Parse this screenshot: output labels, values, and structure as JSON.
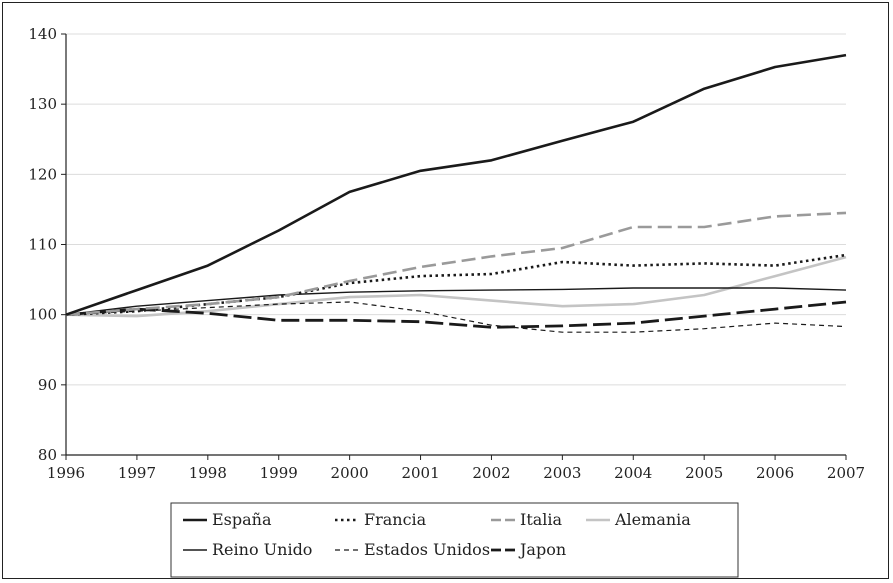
{
  "chart_data": {
    "type": "line",
    "x": [
      "1996",
      "1997",
      "1998",
      "1999",
      "2000",
      "2001",
      "2002",
      "2003",
      "2004",
      "2005",
      "2006",
      "2007"
    ],
    "ylim": [
      80,
      140
    ],
    "yticks": [
      80,
      90,
      100,
      110,
      120,
      130,
      140
    ],
    "grid": true,
    "legend": "bottom",
    "series": [
      {
        "name": "España",
        "color": "#1a1a1a",
        "style": "solid-thick",
        "values": [
          100,
          103.5,
          107,
          112,
          117.5,
          120.5,
          122,
          124.8,
          127.5,
          132.2,
          135.3,
          137
        ]
      },
      {
        "name": "Francia",
        "color": "#1a1a1a",
        "style": "dotted",
        "values": [
          100,
          100.5,
          101.5,
          102.5,
          104.5,
          105.5,
          105.8,
          107.5,
          107,
          107.3,
          107,
          108.5
        ]
      },
      {
        "name": "Italia",
        "color": "#9a9a9a",
        "style": "dashed",
        "values": [
          100,
          100.8,
          101.5,
          102.5,
          104.8,
          106.8,
          108.3,
          109.5,
          112.5,
          112.5,
          114,
          114.5
        ]
      },
      {
        "name": "Alemania",
        "color": "#c4c4c4",
        "style": "solid-thick",
        "values": [
          100,
          99.8,
          100.5,
          101.5,
          102.5,
          102.8,
          102,
          101.2,
          101.5,
          102.8,
          105.5,
          108.2
        ]
      },
      {
        "name": "Reino Unido",
        "color": "#1a1a1a",
        "style": "solid-thin",
        "values": [
          100,
          101.2,
          102,
          102.8,
          103.2,
          103.4,
          103.5,
          103.6,
          103.8,
          103.8,
          103.8,
          103.5
        ]
      },
      {
        "name": "Estados Unidos",
        "color": "#1a1a1a",
        "style": "dashed-thin",
        "values": [
          100,
          100.5,
          101,
          101.5,
          101.8,
          100.5,
          98.5,
          97.5,
          97.5,
          98,
          98.8,
          98.3
        ]
      },
      {
        "name": "Japon",
        "color": "#1a1a1a",
        "style": "longdash",
        "values": [
          100,
          100.8,
          100.2,
          99.2,
          99.2,
          99,
          98.2,
          98.4,
          98.8,
          99.8,
          100.8,
          101.8
        ]
      }
    ]
  }
}
